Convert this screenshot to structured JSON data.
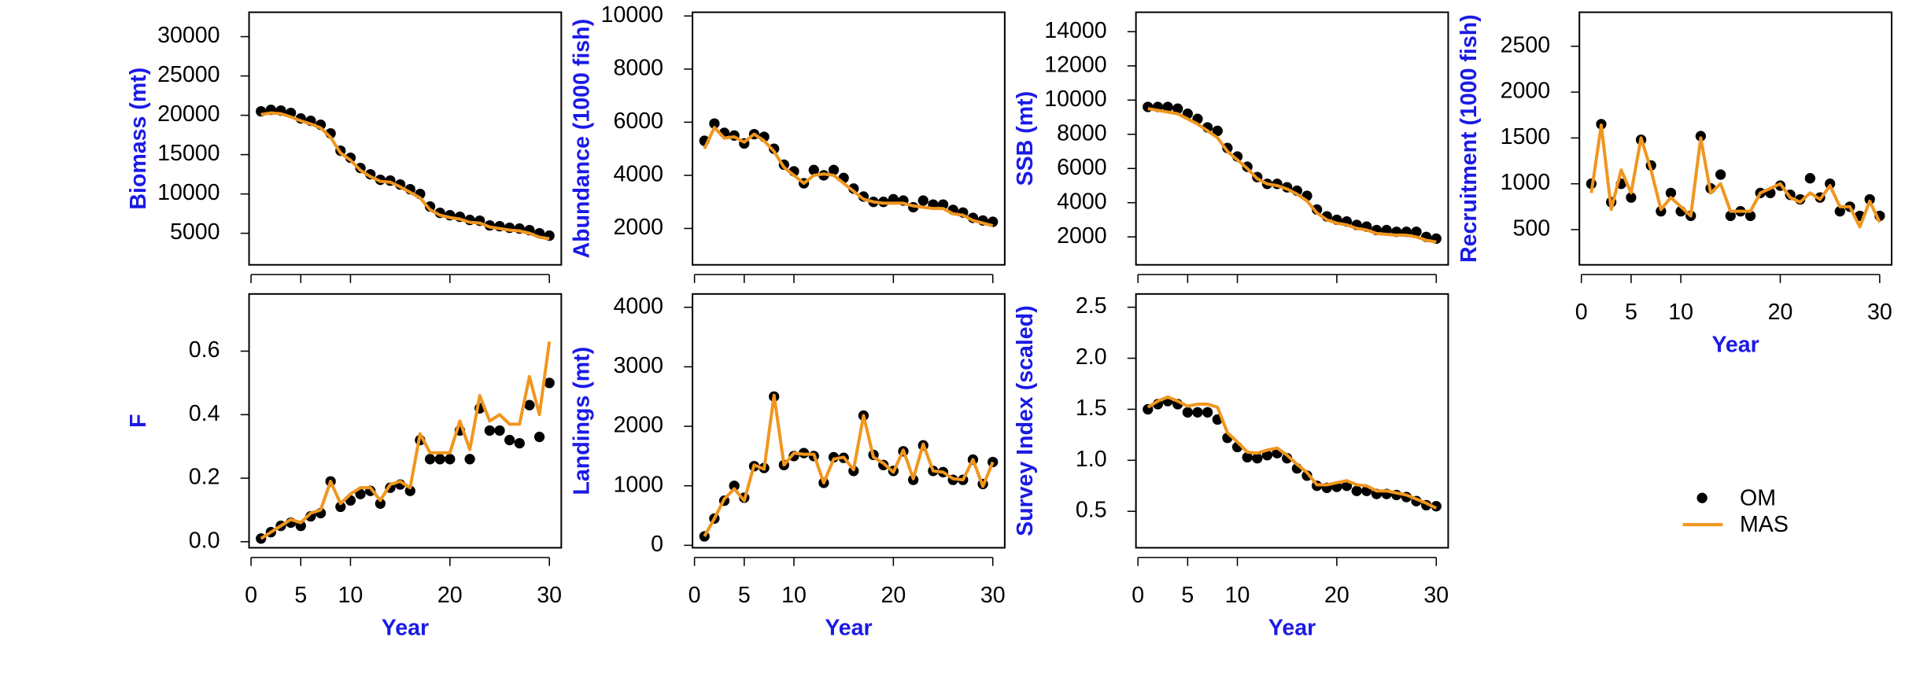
{
  "chart_data": [
    {
      "type": "line",
      "ylabel": "Biomass (mt)",
      "x": [
        1,
        2,
        3,
        4,
        5,
        6,
        7,
        8,
        9,
        10,
        11,
        12,
        13,
        14,
        15,
        16,
        17,
        18,
        19,
        20,
        21,
        22,
        23,
        24,
        25,
        26,
        27,
        28,
        29,
        30
      ],
      "series": [
        {
          "name": "OM",
          "color": "#000000",
          "mode": "markers",
          "values": [
            20500,
            20700,
            20600,
            20300,
            19600,
            19300,
            18800,
            17700,
            15500,
            14600,
            13300,
            12500,
            11800,
            11700,
            11200,
            10600,
            10000,
            8400,
            7600,
            7300,
            7100,
            6700,
            6600,
            6000,
            5900,
            5700,
            5600,
            5400,
            5000,
            4700
          ]
        },
        {
          "name": "MAS",
          "color": "#f0961e",
          "mode": "lines",
          "values": [
            20100,
            20300,
            20200,
            19800,
            19300,
            18900,
            18400,
            17200,
            15200,
            14300,
            13000,
            12200,
            11600,
            11500,
            10900,
            10200,
            9500,
            8000,
            7300,
            7000,
            6800,
            6400,
            6300,
            5800,
            5600,
            5400,
            5300,
            5000,
            4500,
            4300
          ]
        }
      ],
      "xlim": [
        -0.2,
        31.2
      ],
      "ylim": [
        990,
        33100
      ],
      "yticks": [
        5000,
        10000,
        15000,
        20000,
        25000,
        30000
      ]
    },
    {
      "type": "line",
      "ylabel": "Abundance (1000 fish)",
      "x": [
        1,
        2,
        3,
        4,
        5,
        6,
        7,
        8,
        9,
        10,
        11,
        12,
        13,
        14,
        15,
        16,
        17,
        18,
        19,
        20,
        21,
        22,
        23,
        24,
        25,
        26,
        27,
        28,
        29,
        30
      ],
      "series": [
        {
          "name": "OM",
          "color": "#000000",
          "mode": "markers",
          "values": [
            5300,
            5950,
            5600,
            5500,
            5200,
            5550,
            5450,
            5000,
            4400,
            4150,
            3700,
            4200,
            4000,
            4200,
            3900,
            3500,
            3200,
            3000,
            3000,
            3100,
            3050,
            2800,
            3050,
            2900,
            2900,
            2700,
            2600,
            2400,
            2300,
            2250
          ]
        },
        {
          "name": "MAS",
          "color": "#f0961e",
          "mode": "lines",
          "values": [
            5000,
            5800,
            5400,
            5450,
            5250,
            5550,
            5300,
            4900,
            4300,
            4000,
            3700,
            4000,
            4050,
            4000,
            3700,
            3400,
            3100,
            3000,
            2950,
            2950,
            2950,
            2850,
            2800,
            2750,
            2750,
            2550,
            2500,
            2300,
            2200,
            2100
          ]
        }
      ],
      "xlim": [
        -0.2,
        31.2
      ],
      "ylim": [
        630,
        10140
      ],
      "yticks": [
        2000,
        4000,
        6000,
        8000,
        10000
      ]
    },
    {
      "type": "line",
      "ylabel": "SSB (mt)",
      "x": [
        1,
        2,
        3,
        4,
        5,
        6,
        7,
        8,
        9,
        10,
        11,
        12,
        13,
        14,
        15,
        16,
        17,
        18,
        19,
        20,
        21,
        22,
        23,
        24,
        25,
        26,
        27,
        28,
        29,
        30
      ],
      "series": [
        {
          "name": "OM",
          "color": "#000000",
          "mode": "markers",
          "values": [
            9600,
            9600,
            9600,
            9500,
            9200,
            8900,
            8400,
            8200,
            7200,
            6700,
            6100,
            5500,
            5100,
            5100,
            4900,
            4700,
            4400,
            3600,
            3200,
            3000,
            2900,
            2700,
            2600,
            2400,
            2400,
            2300,
            2300,
            2300,
            2000,
            1900
          ]
        },
        {
          "name": "MAS",
          "color": "#f0961e",
          "mode": "lines",
          "values": [
            9500,
            9400,
            9300,
            9200,
            8900,
            8600,
            8200,
            7800,
            7000,
            6500,
            6000,
            5400,
            5100,
            5000,
            4800,
            4500,
            4100,
            3400,
            3000,
            2800,
            2700,
            2500,
            2400,
            2200,
            2150,
            2100,
            2100,
            2000,
            1800,
            1700
          ]
        }
      ],
      "xlim": [
        -0.2,
        31.2
      ],
      "ylim": [
        367,
        15136
      ],
      "yticks": [
        2000,
        4000,
        6000,
        8000,
        10000,
        12000,
        14000
      ]
    },
    {
      "type": "line",
      "ylabel": "Recruitment (1000 fish)",
      "xlabel": "Year",
      "x": [
        1,
        2,
        3,
        4,
        5,
        6,
        7,
        8,
        9,
        10,
        11,
        12,
        13,
        14,
        15,
        16,
        17,
        18,
        19,
        20,
        21,
        22,
        23,
        24,
        25,
        26,
        27,
        28,
        29,
        30
      ],
      "series": [
        {
          "name": "OM",
          "color": "#000000",
          "mode": "markers",
          "values": [
            1000,
            1650,
            800,
            1000,
            850,
            1480,
            1200,
            700,
            900,
            700,
            650,
            1520,
            950,
            1100,
            650,
            700,
            650,
            900,
            900,
            980,
            880,
            830,
            1060,
            850,
            1000,
            700,
            750,
            650,
            830,
            650
          ]
        },
        {
          "name": "MAS",
          "color": "#f0961e",
          "mode": "lines",
          "values": [
            900,
            1640,
            720,
            1150,
            900,
            1500,
            1150,
            720,
            850,
            750,
            650,
            1500,
            900,
            1000,
            700,
            700,
            700,
            900,
            950,
            1000,
            850,
            800,
            900,
            830,
            980,
            750,
            750,
            530,
            810,
            580
          ]
        }
      ],
      "xlim": [
        -0.2,
        31.2
      ],
      "xticks": [
        0,
        5,
        10,
        20,
        30
      ],
      "ylim": [
        116,
        2871
      ],
      "yticks": [
        500,
        1000,
        1500,
        2000,
        2500
      ]
    },
    {
      "type": "line",
      "ylabel": "F",
      "xlabel": "Year",
      "x": [
        1,
        2,
        3,
        4,
        5,
        6,
        7,
        8,
        9,
        10,
        11,
        12,
        13,
        14,
        15,
        16,
        17,
        18,
        19,
        20,
        21,
        22,
        23,
        24,
        25,
        26,
        27,
        28,
        29,
        30
      ],
      "series": [
        {
          "name": "OM",
          "color": "#000000",
          "mode": "markers",
          "values": [
            0.01,
            0.03,
            0.05,
            0.06,
            0.05,
            0.08,
            0.09,
            0.19,
            0.11,
            0.13,
            0.15,
            0.16,
            0.12,
            0.17,
            0.18,
            0.16,
            0.32,
            0.26,
            0.26,
            0.26,
            0.35,
            0.26,
            0.42,
            0.35,
            0.35,
            0.32,
            0.31,
            0.43,
            0.33,
            0.5
          ]
        },
        {
          "name": "MAS",
          "color": "#f0961e",
          "mode": "lines",
          "values": [
            0.01,
            0.03,
            0.05,
            0.07,
            0.06,
            0.09,
            0.1,
            0.19,
            0.12,
            0.15,
            0.17,
            0.17,
            0.13,
            0.18,
            0.19,
            0.17,
            0.34,
            0.28,
            0.28,
            0.28,
            0.38,
            0.29,
            0.46,
            0.38,
            0.4,
            0.37,
            0.37,
            0.52,
            0.4,
            0.63
          ]
        }
      ],
      "xlim": [
        -0.2,
        31.2
      ],
      "xticks": [
        0,
        5,
        10,
        20,
        30
      ],
      "ylim": [
        -0.019,
        0.78
      ],
      "yticks": [
        {
          "value": 0,
          "label": "0.0"
        },
        0.2,
        0.4,
        0.6
      ]
    },
    {
      "type": "line",
      "ylabel": "Landings (mt)",
      "xlabel": "Year",
      "x": [
        1,
        2,
        3,
        4,
        5,
        6,
        7,
        8,
        9,
        10,
        11,
        12,
        13,
        14,
        15,
        16,
        17,
        18,
        19,
        20,
        21,
        22,
        23,
        24,
        25,
        26,
        27,
        28,
        29,
        30
      ],
      "series": [
        {
          "name": "OM",
          "color": "#000000",
          "mode": "markers",
          "values": [
            150,
            450,
            750,
            1000,
            800,
            1330,
            1300,
            2500,
            1350,
            1500,
            1550,
            1500,
            1050,
            1480,
            1470,
            1250,
            2180,
            1520,
            1350,
            1250,
            1580,
            1100,
            1680,
            1250,
            1230,
            1100,
            1100,
            1440,
            1030,
            1400
          ]
        },
        {
          "name": "MAS",
          "color": "#f0961e",
          "mode": "lines",
          "values": [
            150,
            450,
            780,
            950,
            750,
            1350,
            1280,
            2520,
            1350,
            1550,
            1530,
            1530,
            1050,
            1450,
            1480,
            1270,
            2180,
            1480,
            1380,
            1230,
            1600,
            1120,
            1700,
            1250,
            1230,
            1120,
            1100,
            1440,
            990,
            1400
          ]
        }
      ],
      "xlim": [
        -0.2,
        31.2
      ],
      "xticks": [
        0,
        5,
        10,
        20,
        30
      ],
      "ylim": [
        -41,
        4224
      ],
      "yticks": [
        0,
        1000,
        2000,
        3000,
        4000
      ]
    },
    {
      "type": "line",
      "ylabel": "Survey Index (scaled)",
      "xlabel": "Year",
      "x": [
        1,
        2,
        3,
        4,
        5,
        6,
        7,
        8,
        9,
        10,
        11,
        12,
        13,
        14,
        15,
        16,
        17,
        18,
        19,
        20,
        21,
        22,
        23,
        24,
        25,
        26,
        27,
        28,
        29,
        30
      ],
      "series": [
        {
          "name": "OM",
          "color": "#000000",
          "mode": "markers",
          "values": [
            1.5,
            1.55,
            1.58,
            1.55,
            1.47,
            1.47,
            1.47,
            1.4,
            1.22,
            1.13,
            1.03,
            1.02,
            1.05,
            1.07,
            1.02,
            0.92,
            0.85,
            0.75,
            0.73,
            0.74,
            0.75,
            0.7,
            0.7,
            0.67,
            0.67,
            0.66,
            0.64,
            0.6,
            0.56,
            0.55
          ]
        },
        {
          "name": "MAS",
          "color": "#f0961e",
          "mode": "lines",
          "values": [
            1.52,
            1.58,
            1.62,
            1.58,
            1.53,
            1.55,
            1.55,
            1.52,
            1.27,
            1.18,
            1.08,
            1.07,
            1.1,
            1.12,
            1.05,
            0.96,
            0.88,
            0.76,
            0.76,
            0.78,
            0.8,
            0.76,
            0.75,
            0.7,
            0.7,
            0.68,
            0.66,
            0.62,
            0.58,
            0.53
          ]
        }
      ],
      "xlim": [
        -0.2,
        31.2
      ],
      "xticks": [
        0,
        5,
        10,
        20,
        30
      ],
      "ylim": [
        0.143,
        2.63
      ],
      "yticks": [
        0.5,
        {
          "value": 1,
          "label": "1.0"
        },
        1.5,
        {
          "value": 2,
          "label": "2.0"
        },
        2.5
      ]
    }
  ]
}
